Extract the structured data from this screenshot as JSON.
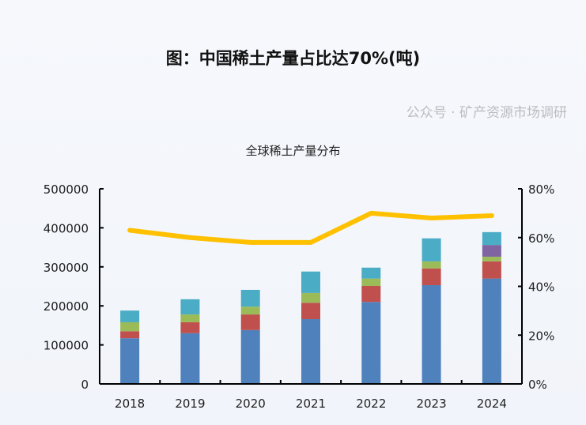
{
  "title": "图：中国稀土产量占比达70%(吨)",
  "watermark": "公众号 · 矿产资源市场调研",
  "chart_data": {
    "type": "bar",
    "title": "全球稀土产量分布",
    "categories": [
      "2018",
      "2019",
      "2020",
      "2021",
      "2022",
      "2023",
      "2024"
    ],
    "series": [
      {
        "name": "series-1",
        "color": "#4f81bd",
        "values": [
          117000,
          130000,
          138000,
          166000,
          210000,
          253000,
          270000
        ]
      },
      {
        "name": "series-2",
        "color": "#c0504d",
        "values": [
          18000,
          28000,
          40000,
          42000,
          41000,
          43000,
          44000
        ]
      },
      {
        "name": "series-3",
        "color": "#9bbb59",
        "values": [
          23000,
          20000,
          20000,
          25000,
          19000,
          18000,
          12000
        ]
      },
      {
        "name": "series-4",
        "color": "#8064a2",
        "values": [
          0,
          0,
          0,
          0,
          0,
          0,
          30000
        ]
      },
      {
        "name": "series-5",
        "color": "#4bacc6",
        "values": [
          30000,
          39000,
          43000,
          55000,
          28000,
          59000,
          33000
        ]
      }
    ],
    "line": {
      "name": "china-share",
      "color": "#ffc000",
      "axis": "right",
      "values": [
        0.63,
        0.6,
        0.58,
        0.58,
        0.7,
        0.68,
        0.69
      ]
    },
    "left_axis": {
      "ylim": [
        0,
        500000
      ],
      "ticks": [
        "0",
        "100000",
        "200000",
        "300000",
        "400000",
        "500000"
      ]
    },
    "right_axis": {
      "ylim": [
        0,
        0.8
      ],
      "ticks": [
        "0%",
        "20%",
        "40%",
        "60%",
        "80%"
      ]
    },
    "legend": "none",
    "grid": false
  }
}
